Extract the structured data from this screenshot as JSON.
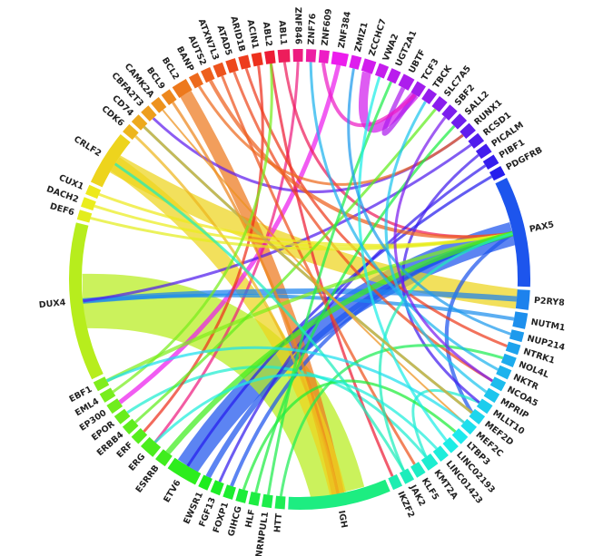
{
  "nodes": [
    {
      "label": "ABL1"
    },
    {
      "label": "ABL2"
    },
    {
      "label": "ACIN1"
    },
    {
      "label": "ARID1B"
    },
    {
      "label": "ATAD5"
    },
    {
      "label": "ATXN7L3"
    },
    {
      "label": "AUTS2"
    },
    {
      "label": "BANP"
    },
    {
      "label": "BCL2"
    },
    {
      "label": "BCL9"
    },
    {
      "label": "CAMK2A"
    },
    {
      "label": "CBFA2T3"
    },
    {
      "label": "CD74"
    },
    {
      "label": "CDK6"
    },
    {
      "label": "CRLF2"
    },
    {
      "label": "CUX1"
    },
    {
      "label": "DACH2"
    },
    {
      "label": "DEF6"
    },
    {
      "label": "DUX4"
    },
    {
      "label": "EBF1"
    },
    {
      "label": "EML4"
    },
    {
      "label": "EP300"
    },
    {
      "label": "EPOR"
    },
    {
      "label": "ERBB4"
    },
    {
      "label": "ERF"
    },
    {
      "label": "ERG"
    },
    {
      "label": "ESRRB"
    },
    {
      "label": "ETV6"
    },
    {
      "label": "EWSR1"
    },
    {
      "label": "FGF13"
    },
    {
      "label": "FOXP1"
    },
    {
      "label": "GIHCG"
    },
    {
      "label": "HLF"
    },
    {
      "label": "HNRNPUL1"
    },
    {
      "label": "HTT"
    },
    {
      "label": "IGH"
    },
    {
      "label": "IKZF2"
    },
    {
      "label": "JAK2"
    },
    {
      "label": "KLF5"
    },
    {
      "label": "KMT2A"
    },
    {
      "label": "LINC01423"
    },
    {
      "label": "LINC02193"
    },
    {
      "label": "LTBP3"
    },
    {
      "label": "MEF2C"
    },
    {
      "label": "MEF2D"
    },
    {
      "label": "MLLT10"
    },
    {
      "label": "MPRIP"
    },
    {
      "label": "NCOA5"
    },
    {
      "label": "NKTR"
    },
    {
      "label": "NOL4L"
    },
    {
      "label": "NTRK1"
    },
    {
      "label": "NUP214"
    },
    {
      "label": "NUTM1"
    },
    {
      "label": "P2RY8"
    },
    {
      "label": "PAX5"
    },
    {
      "label": "PDGFRB"
    },
    {
      "label": "PIBF1"
    },
    {
      "label": "PICALM"
    },
    {
      "label": "RCSD1"
    },
    {
      "label": "RUNX1"
    },
    {
      "label": "SALL2"
    },
    {
      "label": "SBF2"
    },
    {
      "label": "SLC7A5"
    },
    {
      "label": "TBCK"
    },
    {
      "label": "TCF3"
    },
    {
      "label": "UBTF"
    },
    {
      "label": "UGT2A1"
    },
    {
      "label": "VWA2"
    },
    {
      "label": "ZCCHC7"
    },
    {
      "label": "ZMIZ1"
    },
    {
      "label": "ZNF384"
    },
    {
      "label": "ZNF609"
    },
    {
      "label": "ZNF76"
    },
    {
      "label": "ZNF846"
    }
  ]
}
